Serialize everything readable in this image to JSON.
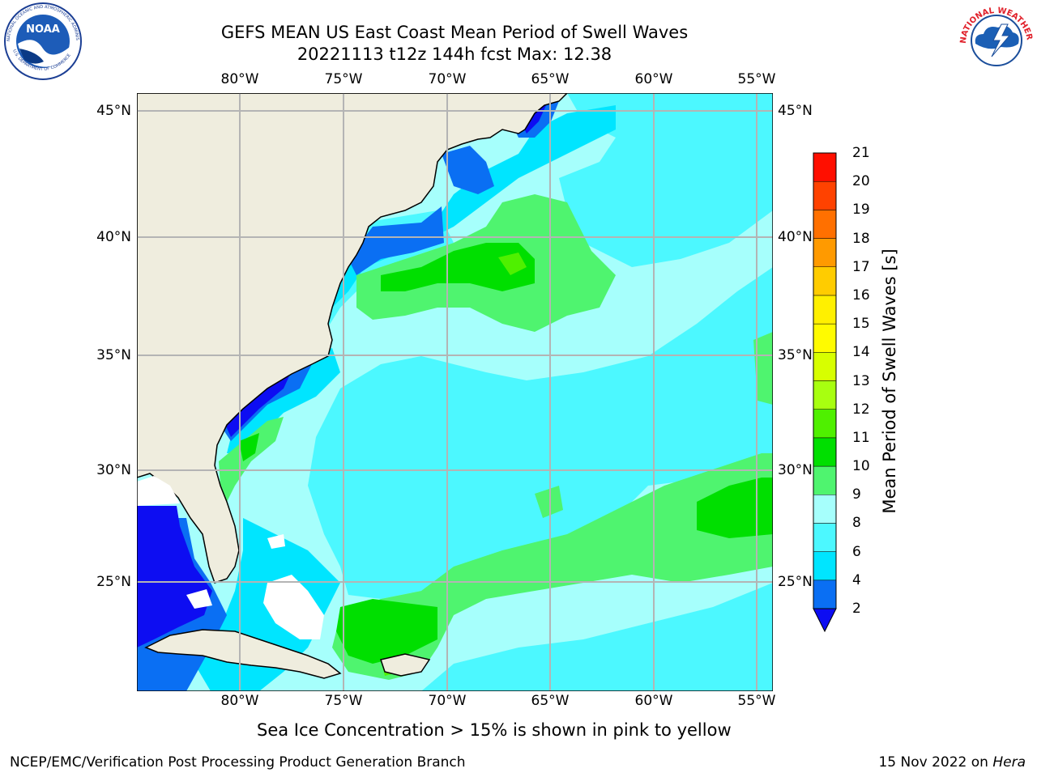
{
  "header": {
    "title_line1": "GEFS MEAN US East Coast Mean Period of Swell Waves",
    "title_line2": "20221113 t12z 144h fcst   Max: 12.38"
  },
  "logos": {
    "noaa": {
      "icon": "noaa-logo",
      "text": "NOAA",
      "ring_text": "NATIONAL OCEANIC AND ATMOSPHERIC ADMINISTRATION · U.S. DEPARTMENT OF COMMERCE"
    },
    "nws": {
      "icon": "nws-logo",
      "ring_text": "NATIONAL WEATHER SERVICE"
    }
  },
  "map": {
    "longitude_labels": [
      "80°W",
      "75°W",
      "70°W",
      "65°W",
      "60°W",
      "55°W"
    ],
    "latitude_labels": [
      "45°N",
      "40°N",
      "35°N",
      "30°N",
      "25°N"
    ],
    "land_color": "#efedde",
    "grid_color": "#b4b4b4"
  },
  "colorbar": {
    "label": "Mean Period of Swell Waves [s]",
    "tick_labels": [
      "2",
      "4",
      "6",
      "8",
      "9",
      "10",
      "11",
      "12",
      "13",
      "14",
      "15",
      "16",
      "17",
      "18",
      "19",
      "20",
      "21"
    ],
    "colors": [
      "#0d0df2",
      "#0a6ff3",
      "#00e5ff",
      "#4cf8ff",
      "#a6fffc",
      "#4ff46f",
      "#00df00",
      "#4ff000",
      "#a8ff10",
      "#d7ff00",
      "#fffb00",
      "#fff000",
      "#ffcc00",
      "#ff9a00",
      "#ff7000",
      "#ff4200",
      "#ff0f00"
    ]
  },
  "footer": {
    "sea_ice_note": "Sea Ice Concentration > 15% is shown in pink to yellow",
    "producer": "NCEP/EMC/Verification Post Processing Product Generation Branch",
    "date": "15 Nov 2022 on ",
    "machine": "Hera"
  }
}
